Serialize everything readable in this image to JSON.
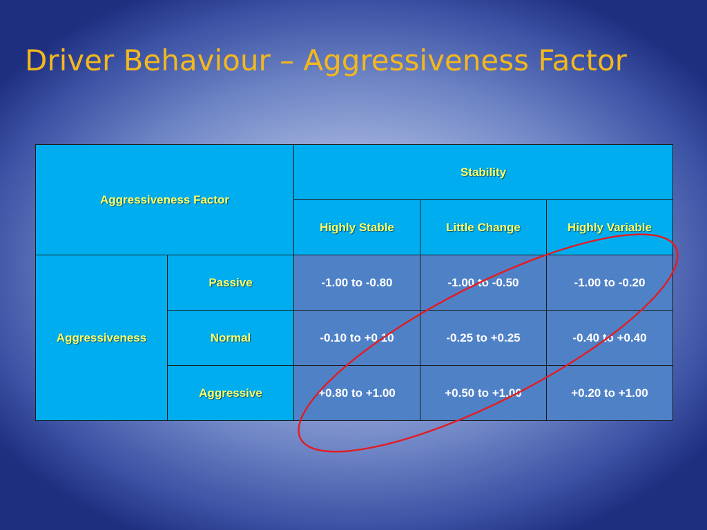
{
  "title": "Driver Behaviour – Aggressiveness Factor",
  "table": {
    "corner_header": "Aggressiveness  Factor",
    "group_header": "Stability",
    "columns": [
      "Highly  Stable",
      "Little Change",
      "Highly  Variable"
    ],
    "row_group": "Aggressiveness",
    "rows": [
      {
        "label": "Passive",
        "cells": [
          "-1.00 to -0.80",
          "-1.00 to -0.50",
          "-1.00 to -0.20"
        ]
      },
      {
        "label": "Normal",
        "cells": [
          "-0.10 to +0.10",
          "-0.25 to +0.25",
          "-0.40 to +0.40"
        ]
      },
      {
        "label": "Aggressive",
        "cells": [
          "+0.80 to +1.00",
          "+0.50 to +1.00",
          "+0.20 to +1.00"
        ]
      }
    ]
  },
  "colors": {
    "title": "#f4b81c",
    "header_fill": "#00aeef",
    "header_text": "#ffff66",
    "value_fill": "#4f81c7",
    "value_text": "#ffffff",
    "highlight_ring": "#e01e24"
  }
}
